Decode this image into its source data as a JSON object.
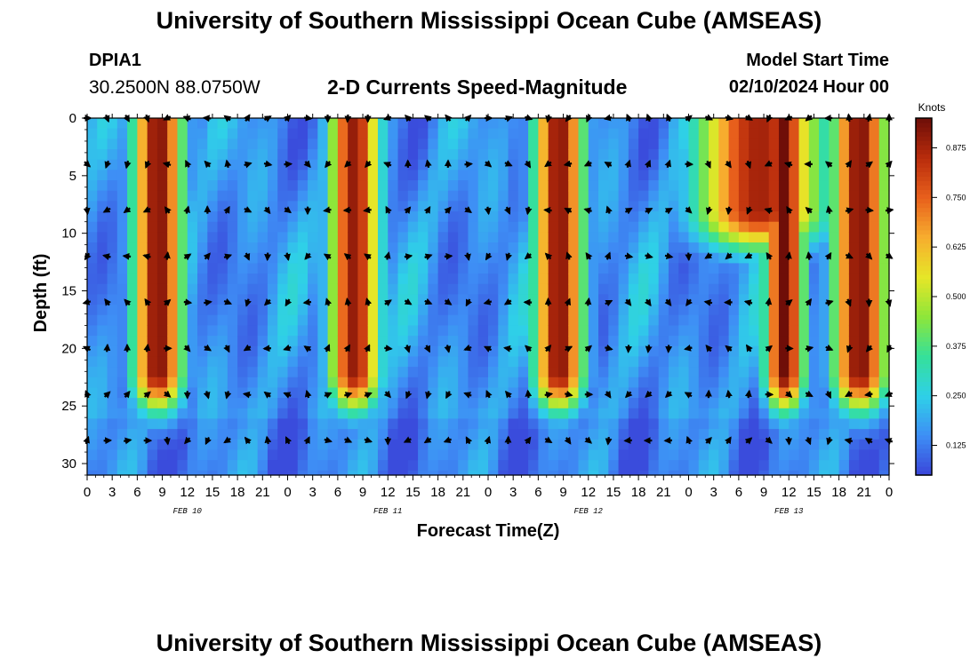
{
  "page": {
    "title": "University of Southern Mississippi Ocean Cube (AMSEAS)",
    "station_id": "DPIA1",
    "station_coords": "30.2500N  88.0750W",
    "plot_title": "2-D Currents Speed-Magnitude",
    "model_start_label": "Model Start Time",
    "model_start_value": "02/10/2024 Hour 00",
    "footer_title": "University of Southern Mississippi Ocean Cube (AMSEAS)"
  },
  "chart_data": {
    "type": "heatmap",
    "title": "2-D Currents Speed-Magnitude",
    "xlabel": "Forecast Time(Z)",
    "ylabel": "Depth (ft)",
    "x_tick_labels": [
      "0",
      "3",
      "6",
      "9",
      "12",
      "15",
      "18",
      "21",
      "0",
      "3",
      "6",
      "9",
      "12",
      "15",
      "18",
      "21",
      "0",
      "3",
      "6",
      "9",
      "12",
      "15",
      "18",
      "21",
      "0",
      "3",
      "6",
      "9",
      "12",
      "15",
      "18",
      "21",
      "0"
    ],
    "x_range_hours": [
      0,
      96
    ],
    "date_labels": [
      {
        "hour": 12,
        "label": "FEB 10"
      },
      {
        "hour": 36,
        "label": "FEB 11"
      },
      {
        "hour": 60,
        "label": "FEB 12"
      },
      {
        "hour": 84,
        "label": "FEB 13"
      }
    ],
    "y_ticks": [
      0,
      5,
      10,
      15,
      20,
      25,
      30
    ],
    "y_range": [
      0,
      31
    ],
    "y_inverted": true,
    "colorbar": {
      "label": "Knots",
      "ticks": [
        "0.125",
        "0.250",
        "0.375",
        "0.500",
        "0.625",
        "0.750",
        "0.875"
      ],
      "range": [
        0.05,
        0.95
      ],
      "colors": [
        "#3a45d9",
        "#3e8ef5",
        "#2fd0e8",
        "#35e09a",
        "#8ee63a",
        "#e6e628",
        "#f7ad2e",
        "#e8601c",
        "#b92c0c",
        "#6e0e08"
      ]
    },
    "speed_peaks": [
      {
        "center_hour": 8.5,
        "peak": 0.93,
        "half_width": 2.8,
        "depth_extent": 22
      },
      {
        "center_hour": 33.0,
        "peak": 0.42,
        "half_width": 2.5,
        "depth_extent": 18
      },
      {
        "center_hour": 32.0,
        "peak": 0.9,
        "half_width": 2.8,
        "depth_extent": 22
      },
      {
        "center_hour": 56.5,
        "peak": 0.92,
        "half_width": 2.8,
        "depth_extent": 22
      },
      {
        "center_hour": 80.5,
        "peak": 0.88,
        "half_width": 7.0,
        "depth_extent": 8
      },
      {
        "center_hour": 83.5,
        "peak": 0.95,
        "half_width": 2.2,
        "depth_extent": 22
      },
      {
        "center_hour": 92.5,
        "peak": 0.93,
        "half_width": 3.0,
        "depth_extent": 22
      }
    ],
    "arrow_depths_ft": [
      0,
      4,
      8,
      12,
      16,
      20,
      24,
      28
    ],
    "arrow_hour_step": 2.4
  }
}
